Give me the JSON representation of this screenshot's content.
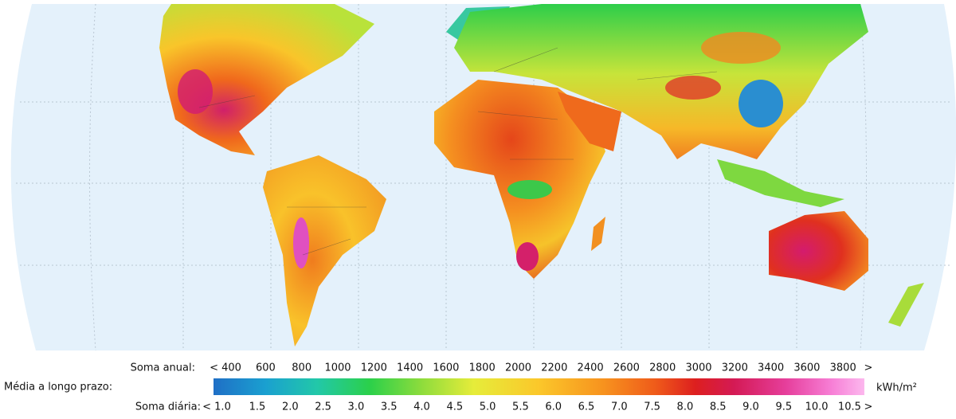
{
  "legend": {
    "annual_title": "Soma anual:",
    "annual_labels": [
      "< 400",
      "600",
      "800",
      "1000",
      "1200",
      "1400",
      "1600",
      "1800",
      "2000",
      "2200",
      "2400",
      "2600",
      "2800",
      "3000",
      "3200",
      "3400",
      "3600",
      "3800",
      ">"
    ],
    "mean_title": "Média a longo prazo:",
    "unit": "kWh/m²",
    "daily_title": "Soma diária:",
    "daily_labels": [
      "< 1.0",
      "1.5",
      "2.0",
      "2.5",
      "3.0",
      "3.5",
      "4.0",
      "4.5",
      "5.0",
      "5.5",
      "6.0",
      "6.5",
      "7.0",
      "7.5",
      "8.0",
      "8.5",
      "9.0",
      "9.5",
      "10.0",
      "10.5",
      ">"
    ]
  }
}
